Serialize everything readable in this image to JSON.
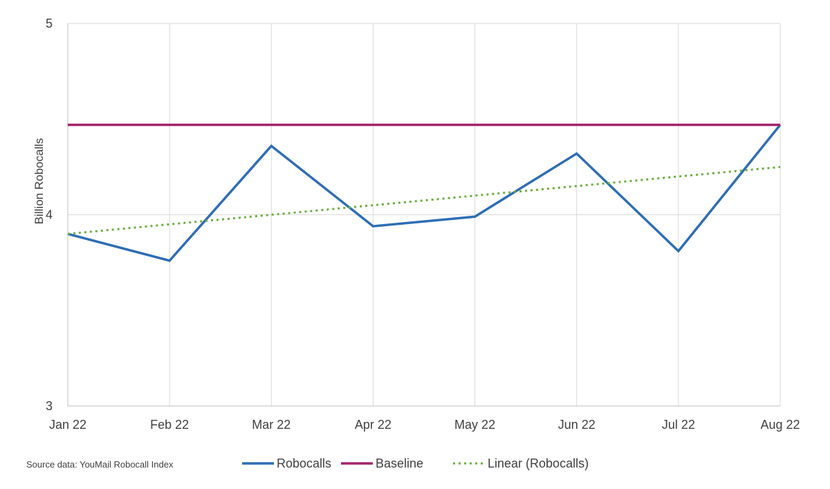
{
  "source_note": "Source data: YouMail Robocall Index",
  "chart_data": {
    "type": "line",
    "ylabel": "Billion Robocalls",
    "xlabel": "",
    "categories": [
      "Jan 22",
      "Feb 22",
      "Mar 22",
      "Apr 22",
      "May 22",
      "Jun 22",
      "Jul 22",
      "Aug 22"
    ],
    "ylim": [
      3,
      5
    ],
    "yticks": [
      3,
      4,
      5
    ],
    "grid": true,
    "legend_position": "bottom",
    "series": [
      {
        "name": "Robocalls",
        "color": "#2E6DB4",
        "style": "solid",
        "values": [
          3.9,
          3.76,
          4.36,
          3.94,
          3.99,
          4.32,
          3.81,
          4.47
        ]
      },
      {
        "name": "Baseline",
        "color": "#A5236A",
        "style": "solid",
        "values": [
          4.47,
          4.47,
          4.47,
          4.47,
          4.47,
          4.47,
          4.47,
          4.47
        ]
      },
      {
        "name": "Linear (Robocalls)",
        "color": "#6AAF3D",
        "style": "dotted",
        "values": [
          3.9,
          3.95,
          4.0,
          4.05,
          4.1,
          4.15,
          4.2,
          4.25
        ]
      }
    ]
  }
}
